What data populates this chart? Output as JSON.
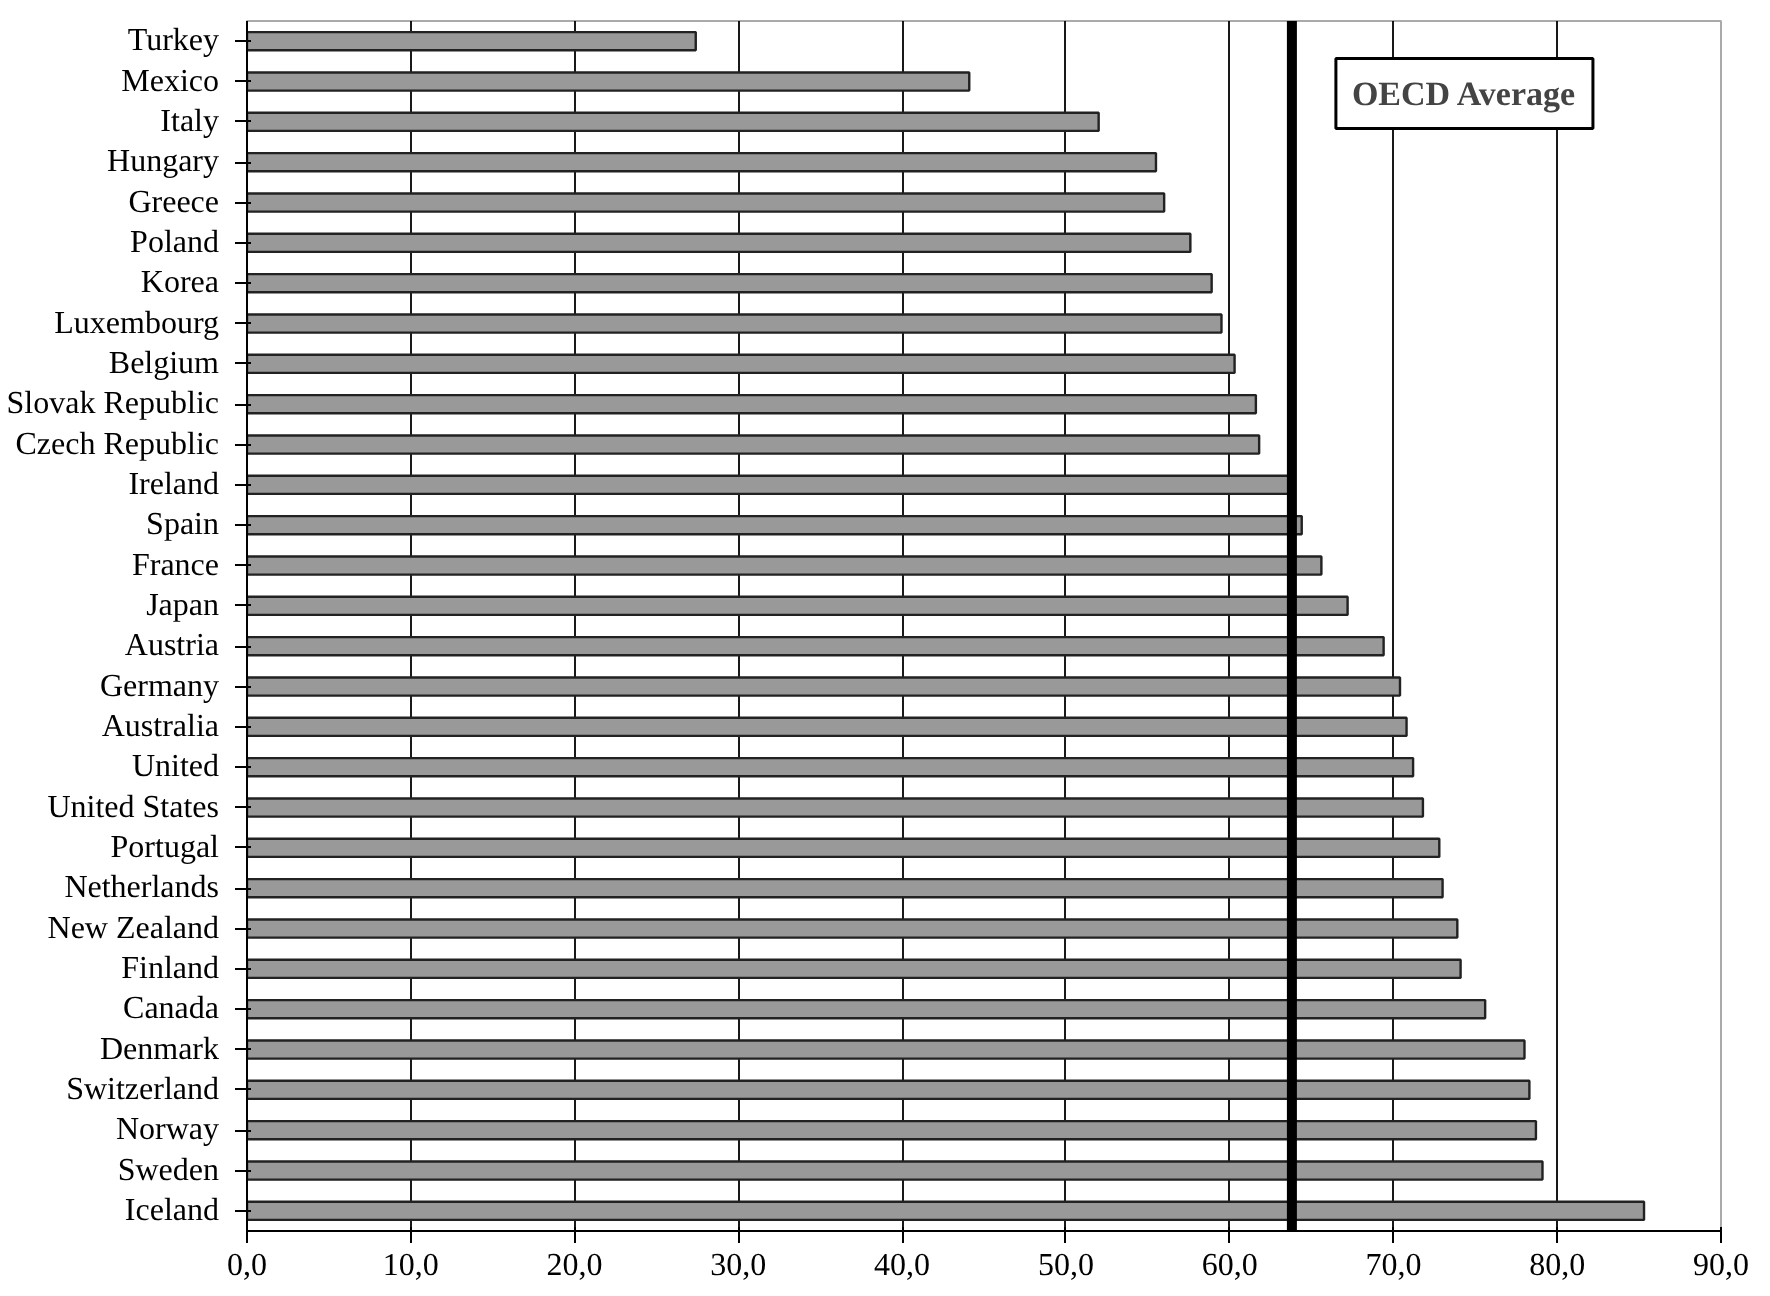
{
  "chart_data": {
    "type": "bar",
    "orientation": "horizontal",
    "categories": [
      "Turkey",
      "Mexico",
      "Italy",
      "Hungary",
      "Greece",
      "Poland",
      "Korea",
      "Luxembourg",
      "Belgium",
      "Slovak Republic",
      "Czech Republic",
      "Ireland",
      "Spain",
      "France",
      "Japan",
      "Austria",
      "Germany",
      "Australia",
      "United",
      "United States",
      "Portugal",
      "Netherlands",
      "New Zealand",
      "Finland",
      "Canada",
      "Denmark",
      "Switzerland",
      "Norway",
      "Sweden",
      "Iceland"
    ],
    "values": [
      27.4,
      44.1,
      52.0,
      55.5,
      56.0,
      57.6,
      58.9,
      59.5,
      60.3,
      61.6,
      61.8,
      63.6,
      64.4,
      65.6,
      67.2,
      69.4,
      70.4,
      70.8,
      71.2,
      71.8,
      72.8,
      73.0,
      73.9,
      74.1,
      75.6,
      78.0,
      78.3,
      78.7,
      79.1,
      85.3
    ],
    "color": "#999999",
    "xlim": [
      0,
      90
    ],
    "xticks": [
      {
        "value": 0,
        "label": "0,0"
      },
      {
        "value": 10,
        "label": "10,0"
      },
      {
        "value": 20,
        "label": "20,0"
      },
      {
        "value": 30,
        "label": "30,0"
      },
      {
        "value": 40,
        "label": "40,0"
      },
      {
        "value": 50,
        "label": "50,0"
      },
      {
        "value": 60,
        "label": "60,0"
      },
      {
        "value": 70,
        "label": "70,0"
      },
      {
        "value": 80,
        "label": "80,0"
      },
      {
        "value": 90,
        "label": "90,0"
      }
    ],
    "grid": "x",
    "ref_lines": [
      {
        "axis": "x",
        "value": 63.8,
        "label": "OECD Average",
        "color": "#000000"
      }
    ]
  }
}
